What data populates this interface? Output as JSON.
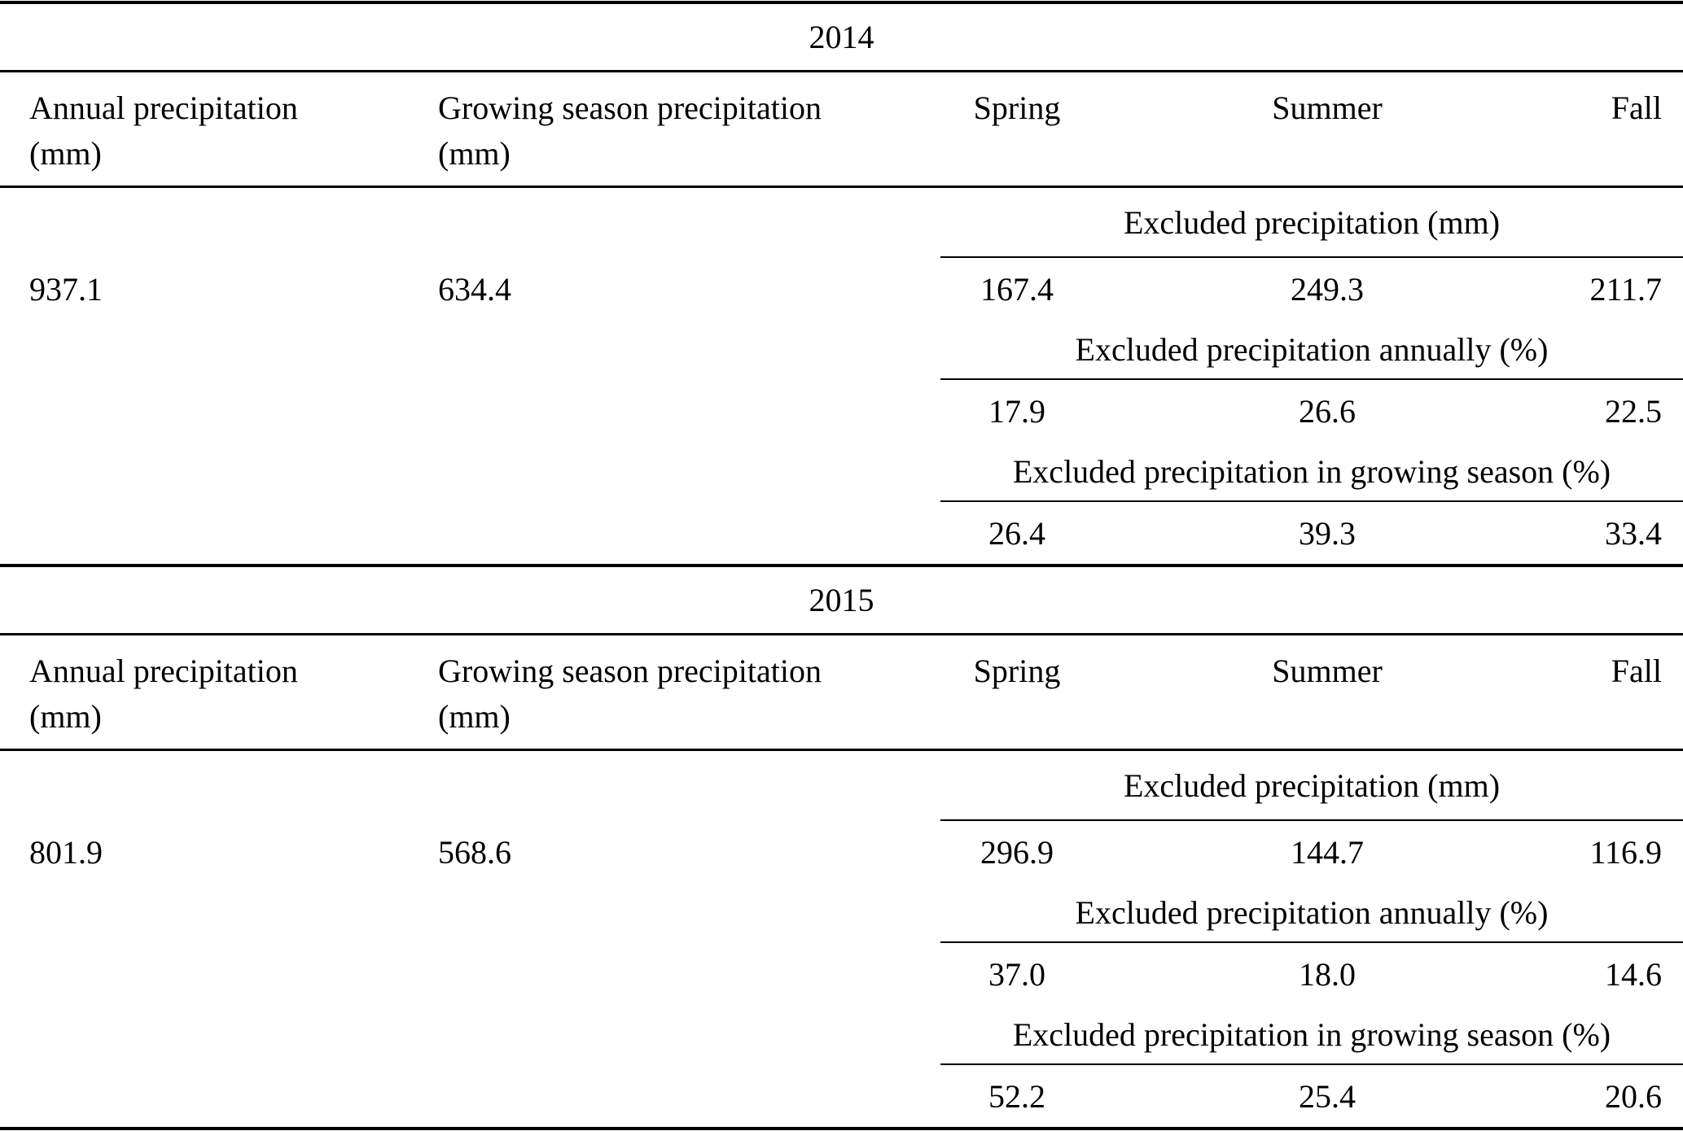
{
  "colors": {
    "background": "#ffffff",
    "text": "#000000",
    "rule": "#000000"
  },
  "table": {
    "sections": [
      {
        "year": "2014",
        "headers": {
          "annual_label": "Annual precipitation",
          "annual_unit": "(mm)",
          "growing_label": "Growing season precipitation",
          "growing_unit": "(mm)",
          "spring": "Spring",
          "summer": "Summer",
          "fall": "Fall"
        },
        "values": {
          "annual": "937.1",
          "growing": "634.4"
        },
        "groups": [
          {
            "label": "Excluded precipitation (mm)",
            "spring": "167.4",
            "summer": "249.3",
            "fall": "211.7"
          },
          {
            "label": "Excluded precipitation annually (%)",
            "spring": "17.9",
            "summer": "26.6",
            "fall": "22.5"
          },
          {
            "label": "Excluded precipitation in growing season (%)",
            "spring": "26.4",
            "summer": "39.3",
            "fall": "33.4"
          }
        ]
      },
      {
        "year": "2015",
        "headers": {
          "annual_label": "Annual precipitation",
          "annual_unit": "(mm)",
          "growing_label": "Growing season precipitation",
          "growing_unit": "(mm)",
          "spring": "Spring",
          "summer": "Summer",
          "fall": "Fall"
        },
        "values": {
          "annual": "801.9",
          "growing": "568.6"
        },
        "groups": [
          {
            "label": "Excluded precipitation (mm)",
            "spring": "296.9",
            "summer": "144.7",
            "fall": "116.9"
          },
          {
            "label": "Excluded precipitation annually (%)",
            "spring": "37.0",
            "summer": "18.0",
            "fall": "14.6"
          },
          {
            "label": "Excluded precipitation in growing season (%)",
            "spring": "52.2",
            "summer": "25.4",
            "fall": "20.6"
          }
        ]
      }
    ]
  }
}
